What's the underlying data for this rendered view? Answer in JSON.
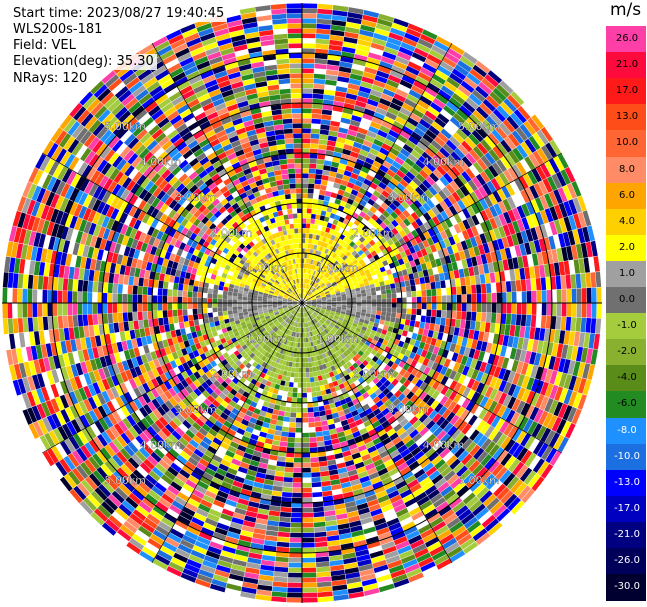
{
  "info": {
    "start_time": "Start time: 2023/08/27 19:40:45",
    "station": "WLS200s-181",
    "field": "Field: VEL",
    "elevation": "Elevation(deg): 35.30",
    "nrays": "NRays: 120"
  },
  "colorbar": {
    "unit": "m/s",
    "entries": [
      {
        "label": "26.0",
        "color": "#ff3fa8"
      },
      {
        "label": "21.0",
        "color": "#ff0a3c"
      },
      {
        "label": "17.0",
        "color": "#ff1a1a"
      },
      {
        "label": "13.0",
        "color": "#ff4d1a"
      },
      {
        "label": "10.0",
        "color": "#ff6633"
      },
      {
        "label": "8.0",
        "color": "#ff8c66"
      },
      {
        "label": "6.0",
        "color": "#ffa500"
      },
      {
        "label": "4.0",
        "color": "#ffd000"
      },
      {
        "label": "2.0",
        "color": "#ffff00"
      },
      {
        "label": "1.0",
        "color": "#a0a0a0"
      },
      {
        "label": "0.0",
        "color": "#707070"
      },
      {
        "label": "-1.0",
        "color": "#a4cc3c"
      },
      {
        "label": "-2.0",
        "color": "#8ab030"
      },
      {
        "label": "-4.0",
        "color": "#5a8c1a"
      },
      {
        "label": "-6.0",
        "color": "#228b22"
      },
      {
        "label": "-8.0",
        "color": "#1e90ff"
      },
      {
        "label": "-10.0",
        "color": "#1c6fe0"
      },
      {
        "label": "-13.0",
        "color": "#0000ff"
      },
      {
        "label": "-17.0",
        "color": "#0000c0"
      },
      {
        "label": "-21.0",
        "color": "#000080"
      },
      {
        "label": "-26.0",
        "color": "#00005a"
      },
      {
        "label": "-30.0",
        "color": "#000030"
      }
    ]
  },
  "chart_data": {
    "type": "ppi",
    "field": "VEL",
    "unit": "m/s",
    "n_rays": 120,
    "elevation_deg": 35.3,
    "range_rings_km": [
      1.0,
      2.0,
      3.0,
      4.0,
      5.0
    ],
    "ring_labels": [
      "1.00km",
      "2.00km",
      "3.00km",
      "4.00km",
      "5.00km"
    ],
    "max_range_km": 6.0,
    "color_levels": [
      26.0,
      21.0,
      17.0,
      13.0,
      10.0,
      8.0,
      6.0,
      4.0,
      2.0,
      1.0,
      0.0,
      -1.0,
      -2.0,
      -4.0,
      -6.0,
      -8.0,
      -10.0,
      -13.0,
      -17.0,
      -21.0,
      -26.0,
      -30.0
    ],
    "pattern_summary": {
      "near_field_north": "positive 2-4 m/s (yellow)",
      "near_field_south": "negative -1 to -2 m/s (olive green)",
      "near_field_east_west": "about 0-1 m/s (grey)",
      "far_field": "noise spanning the full color scale"
    }
  }
}
